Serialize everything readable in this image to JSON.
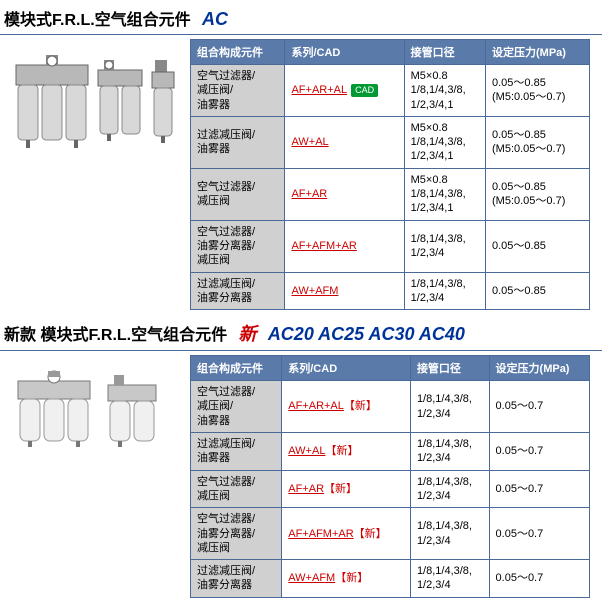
{
  "section1": {
    "title_main": "模块式F.R.L.空气组合元件",
    "title_model": "AC",
    "headers": [
      "组合构成元件",
      "系列/CAD",
      "接管口径",
      "设定压力(MPa)"
    ],
    "rows": [
      {
        "comp": "空气过滤器/\n减压阀/\n油雾器",
        "series": "AF+AR+AL",
        "has_cad": true,
        "port": "M5×0.8\n1/8,1/4,3/8,\n1/2,3/4,1",
        "pressure": "0.05～0.85\n(M5:0.05～0.7)"
      },
      {
        "comp": "过滤减压阀/\n油雾器",
        "series": "AW+AL",
        "has_cad": false,
        "port": "M5×0.8\n1/8,1/4,3/8,\n1/2,3/4,1",
        "pressure": "0.05～0.85\n(M5:0.05～0.7)"
      },
      {
        "comp": "空气过滤器/\n减压阀",
        "series": "AF+AR",
        "has_cad": false,
        "port": "M5×0.8\n1/8,1/4,3/8,\n1/2,3/4,1",
        "pressure": "0.05～0.85\n(M5:0.05～0.7)"
      },
      {
        "comp": "空气过滤器/\n油雾分离器/\n减压阀",
        "series": "AF+AFM+AR",
        "has_cad": false,
        "port": "1/8,1/4,3/8,\n1/2,3/4",
        "pressure": "0.05～0.85"
      },
      {
        "comp": "过滤减压阀/\n油雾分离器",
        "series": "AW+AFM",
        "has_cad": false,
        "port": "1/8,1/4,3/8,\n1/2,3/4",
        "pressure": "0.05～0.85"
      }
    ]
  },
  "section2": {
    "title_prefix": "新款 ",
    "title_main": "模块式F.R.L.空气组合元件",
    "title_new": "新",
    "title_models": "AC20 AC25 AC30 AC40",
    "headers": [
      "组合构成元件",
      "系列/CAD",
      "接管口径",
      "设定压力(MPa)"
    ],
    "new_suffix": "【新】",
    "rows": [
      {
        "comp": "空气过滤器/\n减压阀/\n油雾器",
        "series": "AF+AR+AL",
        "port": "1/8,1/4,3/8,\n1/2,3/4",
        "pressure": "0.05～0.7"
      },
      {
        "comp": "过滤减压阀/\n油雾器",
        "series": "AW+AL",
        "port": "1/8,1/4,3/8,\n1/2,3/4",
        "pressure": "0.05～0.7"
      },
      {
        "comp": "空气过滤器/\n减压阀",
        "series": "AF+AR",
        "port": "1/8,1/4,3/8,\n1/2,3/4",
        "pressure": "0.05～0.7"
      },
      {
        "comp": "空气过滤器/\n油雾分离器/\n减压阀",
        "series": "AF+AFM+AR",
        "port": "1/8,1/4,3/8,\n1/2,3/4",
        "pressure": "0.05～0.7"
      },
      {
        "comp": "过滤减压阀/\n油雾分离器",
        "series": "AW+AFM",
        "port": "1/8,1/4,3/8,\n1/2,3/4",
        "pressure": "0.05～0.7"
      }
    ]
  },
  "style": {
    "header_bg": "#5a7aaa",
    "header_fg": "#ffffff",
    "border": "#4a6a9a",
    "comp_bg": "#d0d0d0",
    "link_color": "#cc0000",
    "title_model_color": "#003399",
    "cad_bg": "#009933"
  }
}
